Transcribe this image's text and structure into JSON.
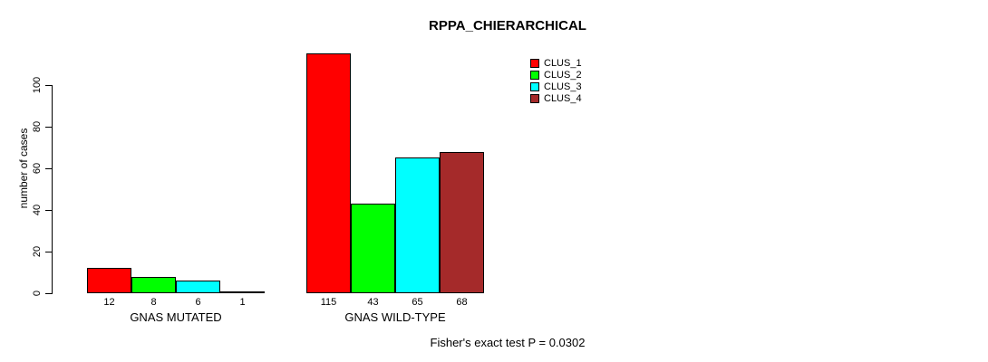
{
  "chart_data": {
    "type": "bar",
    "title": "RPPA_CHIERARCHICAL",
    "xlabel": "",
    "ylabel": "number of cases",
    "categories": [
      "GNAS MUTATED",
      "GNAS WILD-TYPE"
    ],
    "series": [
      {
        "name": "CLUS_1",
        "color": "#ff0000",
        "values": [
          12,
          115
        ]
      },
      {
        "name": "CLUS_2",
        "color": "#00ff00",
        "values": [
          8,
          43
        ]
      },
      {
        "name": "CLUS_3",
        "color": "#00ffff",
        "values": [
          6,
          65
        ]
      },
      {
        "name": "CLUS_4",
        "color": "#a52a2a",
        "values": [
          1,
          68
        ]
      }
    ],
    "yticks": [
      0,
      20,
      40,
      60,
      80,
      100
    ],
    "ylim": [
      0,
      115
    ],
    "grid": false,
    "show_bar_value_labels": true,
    "legend_position": "top-right",
    "bar_border_color": "#000000",
    "background_color": "#ffffff",
    "annotation": "Fisher's exact test P = 0.0302"
  }
}
